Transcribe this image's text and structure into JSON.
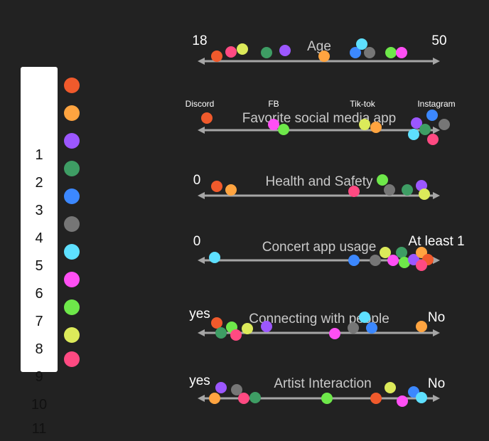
{
  "legend": [
    {
      "label": "1",
      "color": "#f05a2c"
    },
    {
      "label": "2",
      "color": "#ffa440"
    },
    {
      "label": "3",
      "color": "#9c57ff"
    },
    {
      "label": "4",
      "color": "#3e9d64"
    },
    {
      "label": "5",
      "color": "#3c88ff"
    },
    {
      "label": "6",
      "color": "#767676"
    },
    {
      "label": "7",
      "color": "#5ee0ff"
    },
    {
      "label": "8",
      "color": "#ff4ff4"
    },
    {
      "label": "9",
      "color": "#6ee84a"
    },
    {
      "label": "10",
      "color": "#dcea5a"
    },
    {
      "label": "11",
      "color": "#ff4a82"
    }
  ],
  "axes": [
    {
      "title": "Age",
      "left_label": "18",
      "right_label": "50",
      "markers": []
    },
    {
      "title": "Favorite social media app",
      "left_label": "",
      "right_label": "",
      "markers": [
        "Discord",
        "FB",
        "Tik-tok",
        "Instagram"
      ]
    },
    {
      "title": "Health and Safety",
      "left_label": "0",
      "right_label": "",
      "markers": []
    },
    {
      "title": "Concert app usage",
      "left_label": "0",
      "right_label": "At least 1",
      "markers": []
    },
    {
      "title": "Connecting with people",
      "left_label": "yes",
      "right_label": "No",
      "markers": []
    },
    {
      "title": "Artist Interaction",
      "left_label": "yes",
      "right_label": "No",
      "markers": []
    }
  ]
}
